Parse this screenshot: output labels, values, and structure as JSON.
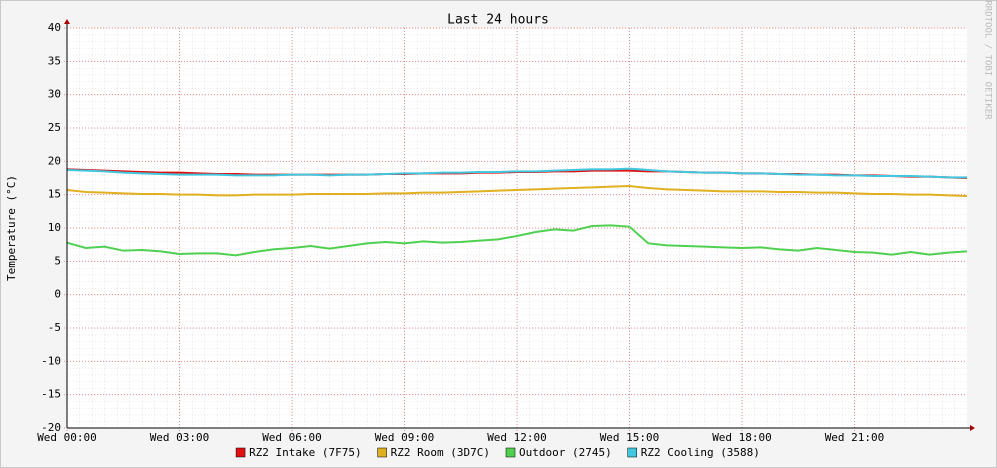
{
  "chart_data": {
    "type": "line",
    "title": "Last 24 hours",
    "ylabel": "Temperature (°C)",
    "watermark": "RRDTOOL / TOBI OETIKER",
    "x": [
      0,
      0.5,
      1,
      1.5,
      2,
      2.5,
      3,
      3.5,
      4,
      4.5,
      5,
      5.5,
      6,
      6.5,
      7,
      7.5,
      8,
      8.5,
      9,
      9.5,
      10,
      10.5,
      11,
      11.5,
      12,
      12.5,
      13,
      13.5,
      14,
      14.5,
      15,
      15.5,
      16,
      16.5,
      17,
      17.5,
      18,
      18.5,
      19,
      19.5,
      20,
      20.5,
      21,
      21.5,
      22,
      22.5,
      23,
      23.5,
      24
    ],
    "xlim": [
      0,
      24
    ],
    "xticks": [
      {
        "value": 0,
        "label": "Wed 00:00"
      },
      {
        "value": 3,
        "label": "Wed 03:00"
      },
      {
        "value": 6,
        "label": "Wed 06:00"
      },
      {
        "value": 9,
        "label": "Wed 09:00"
      },
      {
        "value": 12,
        "label": "Wed 12:00"
      },
      {
        "value": 15,
        "label": "Wed 15:00"
      },
      {
        "value": 18,
        "label": "Wed 18:00"
      },
      {
        "value": 21,
        "label": "Wed 21:00"
      }
    ],
    "ylim": [
      -20,
      40
    ],
    "yticks": [
      -20,
      -15,
      -10,
      -5,
      0,
      5,
      10,
      15,
      20,
      25,
      30,
      35,
      40
    ],
    "grid": true,
    "series": [
      {
        "name": "RZ2 Intake (7F75)",
        "color": "#e01010",
        "values": [
          18.8,
          18.7,
          18.6,
          18.5,
          18.4,
          18.3,
          18.3,
          18.2,
          18.1,
          18.1,
          18.0,
          18.0,
          18.0,
          18.0,
          18.0,
          18.0,
          18.0,
          18.1,
          18.1,
          18.2,
          18.2,
          18.2,
          18.3,
          18.3,
          18.4,
          18.4,
          18.5,
          18.5,
          18.6,
          18.6,
          18.6,
          18.5,
          18.5,
          18.4,
          18.3,
          18.3,
          18.2,
          18.2,
          18.1,
          18.1,
          18.0,
          18.0,
          17.9,
          17.9,
          17.8,
          17.7,
          17.7,
          17.6,
          17.5
        ]
      },
      {
        "name": "RZ2 Room (3D7C)",
        "color": "#e0b020",
        "values": [
          15.7,
          15.4,
          15.3,
          15.2,
          15.1,
          15.1,
          15.0,
          15.0,
          14.9,
          14.9,
          15.0,
          15.0,
          15.0,
          15.1,
          15.1,
          15.1,
          15.1,
          15.2,
          15.2,
          15.3,
          15.3,
          15.4,
          15.5,
          15.6,
          15.7,
          15.8,
          15.9,
          16.0,
          16.1,
          16.2,
          16.3,
          16.0,
          15.8,
          15.7,
          15.6,
          15.5,
          15.5,
          15.5,
          15.4,
          15.4,
          15.3,
          15.3,
          15.2,
          15.1,
          15.1,
          15.0,
          15.0,
          14.9,
          14.8
        ]
      },
      {
        "name": "Outdoor (2745)",
        "color": "#50d050",
        "values": [
          7.8,
          7.0,
          7.2,
          6.6,
          6.7,
          6.5,
          6.1,
          6.2,
          6.2,
          5.9,
          6.4,
          6.8,
          7.0,
          7.3,
          6.9,
          7.3,
          7.7,
          7.9,
          7.7,
          8.0,
          7.8,
          7.9,
          8.1,
          8.3,
          8.8,
          9.4,
          9.8,
          9.6,
          10.3,
          10.4,
          10.2,
          7.7,
          7.4,
          7.3,
          7.2,
          7.1,
          7.0,
          7.1,
          6.8,
          6.6,
          7.0,
          6.7,
          6.4,
          6.3,
          6.0,
          6.4,
          6.0,
          6.3,
          6.5
        ]
      },
      {
        "name": "RZ2 Cooling (3588)",
        "color": "#40c8e0",
        "values": [
          18.7,
          18.6,
          18.5,
          18.3,
          18.2,
          18.1,
          18.0,
          18.0,
          18.0,
          17.9,
          17.9,
          17.9,
          18.0,
          18.0,
          17.9,
          18.0,
          18.0,
          18.1,
          18.2,
          18.2,
          18.3,
          18.3,
          18.4,
          18.4,
          18.5,
          18.5,
          18.6,
          18.7,
          18.8,
          18.8,
          18.9,
          18.7,
          18.5,
          18.4,
          18.3,
          18.3,
          18.2,
          18.2,
          18.1,
          18.0,
          18.0,
          17.9,
          17.9,
          17.8,
          17.8,
          17.8,
          17.7,
          17.6,
          17.6
        ]
      }
    ]
  }
}
